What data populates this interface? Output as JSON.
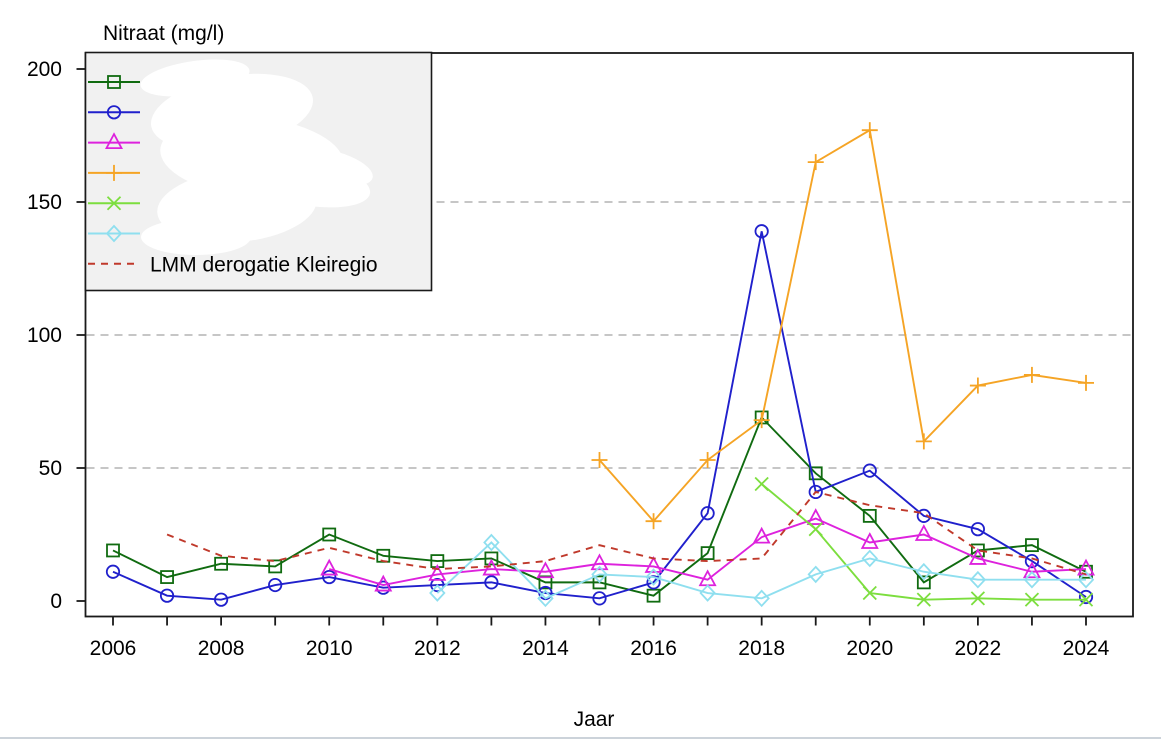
{
  "chart_data": {
    "type": "line",
    "title": "Nitraat (mg/l)",
    "xlabel": "Jaar",
    "ylabel": "",
    "x": [
      2006,
      2007,
      2008,
      2009,
      2010,
      2011,
      2012,
      2013,
      2014,
      2015,
      2016,
      2017,
      2018,
      2019,
      2020,
      2021,
      2022,
      2023,
      2024
    ],
    "xtick_label_years": [
      "2006",
      "2008",
      "2010",
      "2012",
      "2014",
      "2016",
      "2018",
      "2020",
      "2022",
      "2024"
    ],
    "yticks": [
      0,
      50,
      100,
      150,
      200
    ],
    "ytick_labels": [
      "0",
      "50",
      "100",
      "150",
      "200"
    ],
    "ylim": [
      0,
      206
    ],
    "gridlines_y": [
      50,
      100,
      150
    ],
    "grid_style": "dashed",
    "legend_position": "top-left",
    "legend_background": "#f1f1f1",
    "series": [
      {
        "name": "series-square",
        "marker": "square",
        "color": "#106b10",
        "line": "solid",
        "legend_label": "",
        "redacted": true,
        "values": [
          19,
          9,
          14,
          13,
          25,
          17,
          15,
          16,
          7,
          7,
          2,
          18,
          69,
          48,
          32,
          7,
          19,
          21,
          11
        ]
      },
      {
        "name": "series-circle",
        "marker": "circle",
        "color": "#2020cc",
        "line": "solid",
        "legend_label": "",
        "redacted": true,
        "values": [
          11,
          2,
          0.5,
          6,
          9,
          5,
          6,
          7,
          3,
          1,
          7,
          33,
          139,
          41,
          49,
          32,
          27,
          15,
          1.5
        ]
      },
      {
        "name": "series-triangle",
        "marker": "triangle",
        "color": "#dd22dd",
        "line": "solid",
        "legend_label": "",
        "redacted": true,
        "values": [
          null,
          null,
          null,
          null,
          12,
          6,
          10,
          12,
          11,
          14,
          13,
          8,
          24,
          31,
          22,
          25,
          16,
          11,
          12
        ]
      },
      {
        "name": "series-plus",
        "marker": "plus",
        "color": "#f5a425",
        "line": "solid",
        "legend_label": "",
        "redacted": true,
        "values": [
          null,
          null,
          null,
          null,
          null,
          null,
          null,
          null,
          null,
          53,
          30,
          53,
          68,
          165,
          177,
          60,
          81,
          85,
          82
        ]
      },
      {
        "name": "series-x",
        "marker": "x",
        "color": "#7cde3e",
        "line": "solid",
        "legend_label": "",
        "redacted": true,
        "values": [
          null,
          null,
          null,
          null,
          null,
          null,
          null,
          null,
          null,
          null,
          null,
          null,
          44,
          27,
          3,
          0.5,
          1,
          0.5,
          0.5
        ]
      },
      {
        "name": "series-diamond",
        "marker": "diamond",
        "color": "#8fdfef",
        "line": "solid",
        "legend_label": "",
        "redacted": true,
        "values": [
          null,
          null,
          null,
          null,
          null,
          null,
          3,
          22,
          1,
          10,
          9,
          3,
          1,
          10,
          16,
          11,
          8,
          8,
          8
        ]
      },
      {
        "name": "series-lmm-derogatie-kleiregio",
        "marker": "none",
        "color": "#c0392b",
        "line": "dashed",
        "legend_label": "LMM derogatie Kleiregio",
        "redacted": false,
        "values": [
          null,
          25,
          17,
          15,
          20,
          15,
          12,
          13,
          15,
          21,
          16,
          15,
          16,
          41,
          36,
          33,
          19,
          16,
          10
        ]
      }
    ]
  }
}
